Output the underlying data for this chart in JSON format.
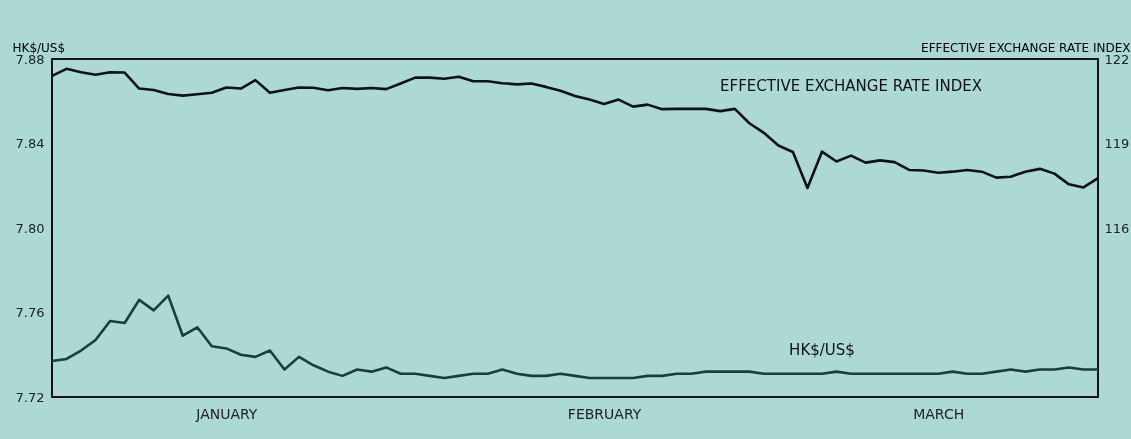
{
  "chart_data": {
    "type": "line",
    "ylabel": "HK$/US$",
    "y2label": "EFFECTIVE EXCHANGE RATE INDEX",
    "ylim": [
      7.72,
      7.88
    ],
    "yticks": [
      {
        "value": 7.72,
        "label": "7.72"
      },
      {
        "value": 7.76,
        "label": "7.76"
      },
      {
        "value": 7.8,
        "label": "7.80"
      },
      {
        "value": 7.84,
        "label": "7.84"
      },
      {
        "value": 7.88,
        "label": "7.88"
      }
    ],
    "y2lim": [
      110,
      122
    ],
    "y2ticks": [
      116,
      119,
      122
    ],
    "categories": [
      null,
      null,
      null,
      null,
      null,
      null,
      null,
      null,
      null,
      null,
      null,
      null,
      "JANUARY",
      null,
      null,
      null,
      null,
      null,
      null,
      null,
      null,
      null,
      null,
      null,
      null,
      null,
      null,
      null,
      null,
      null,
      null,
      null,
      null,
      null,
      null,
      null,
      null,
      null,
      "FEBRUARY",
      null,
      null,
      null,
      null,
      null,
      null,
      null,
      null,
      null,
      null,
      null,
      null,
      null,
      null,
      null,
      null,
      null,
      null,
      null,
      null,
      null,
      null,
      "MARCH",
      null,
      null,
      null,
      null,
      null,
      null,
      null,
      null,
      null,
      null,
      null
    ],
    "grid": false,
    "legend": false,
    "marker": "none",
    "line_style": "solid",
    "series": [
      {
        "name": "EFFECTIVE EXCHANGE RATE INDEX",
        "color": "#111111",
        "axis": "y2",
        "values": [
          121.4,
          121.65,
          121.53,
          121.44,
          121.53,
          121.52,
          120.95,
          120.9,
          120.76,
          120.7,
          120.75,
          120.8,
          120.99,
          120.95,
          121.25,
          120.8,
          120.9,
          120.99,
          120.98,
          120.89,
          120.97,
          120.94,
          120.97,
          120.93,
          121.13,
          121.34,
          121.34,
          121.3,
          121.37,
          121.21,
          121.21,
          121.14,
          121.1,
          121.13,
          121.01,
          120.87,
          120.69,
          120.56,
          120.4,
          120.56,
          120.31,
          120.38,
          120.22,
          120.23,
          120.23,
          120.23,
          120.15,
          120.23,
          119.72,
          119.38,
          118.93,
          118.7,
          117.42,
          118.71,
          118.36,
          118.57,
          118.32,
          118.4,
          118.34,
          118.06,
          118.04,
          117.96,
          118.0,
          118.06,
          118.0,
          117.79,
          117.82,
          118.0,
          118.1,
          117.93,
          117.55,
          117.44,
          117.77
        ]
      },
      {
        "name": "HK$/US$",
        "color": "#1d3d3b",
        "axis": "y",
        "values": [
          7.737,
          7.738,
          7.742,
          7.747,
          7.756,
          7.755,
          7.766,
          7.761,
          7.768,
          7.749,
          7.753,
          7.744,
          7.743,
          7.74,
          7.739,
          7.742,
          7.733,
          7.739,
          7.735,
          7.732,
          7.73,
          7.733,
          7.732,
          7.734,
          7.731,
          7.731,
          7.73,
          7.729,
          7.73,
          7.731,
          7.731,
          7.733,
          7.731,
          7.73,
          7.73,
          7.731,
          7.73,
          7.729,
          7.729,
          7.729,
          7.729,
          7.73,
          7.73,
          7.731,
          7.731,
          7.732,
          7.732,
          7.732,
          7.732,
          7.731,
          7.731,
          7.731,
          7.731,
          7.731,
          7.732,
          7.731,
          7.731,
          7.731,
          7.731,
          7.731,
          7.731,
          7.731,
          7.732,
          7.731,
          7.731,
          7.732,
          7.733,
          7.732,
          7.733,
          7.733,
          7.734,
          7.733,
          7.733
        ]
      }
    ]
  }
}
